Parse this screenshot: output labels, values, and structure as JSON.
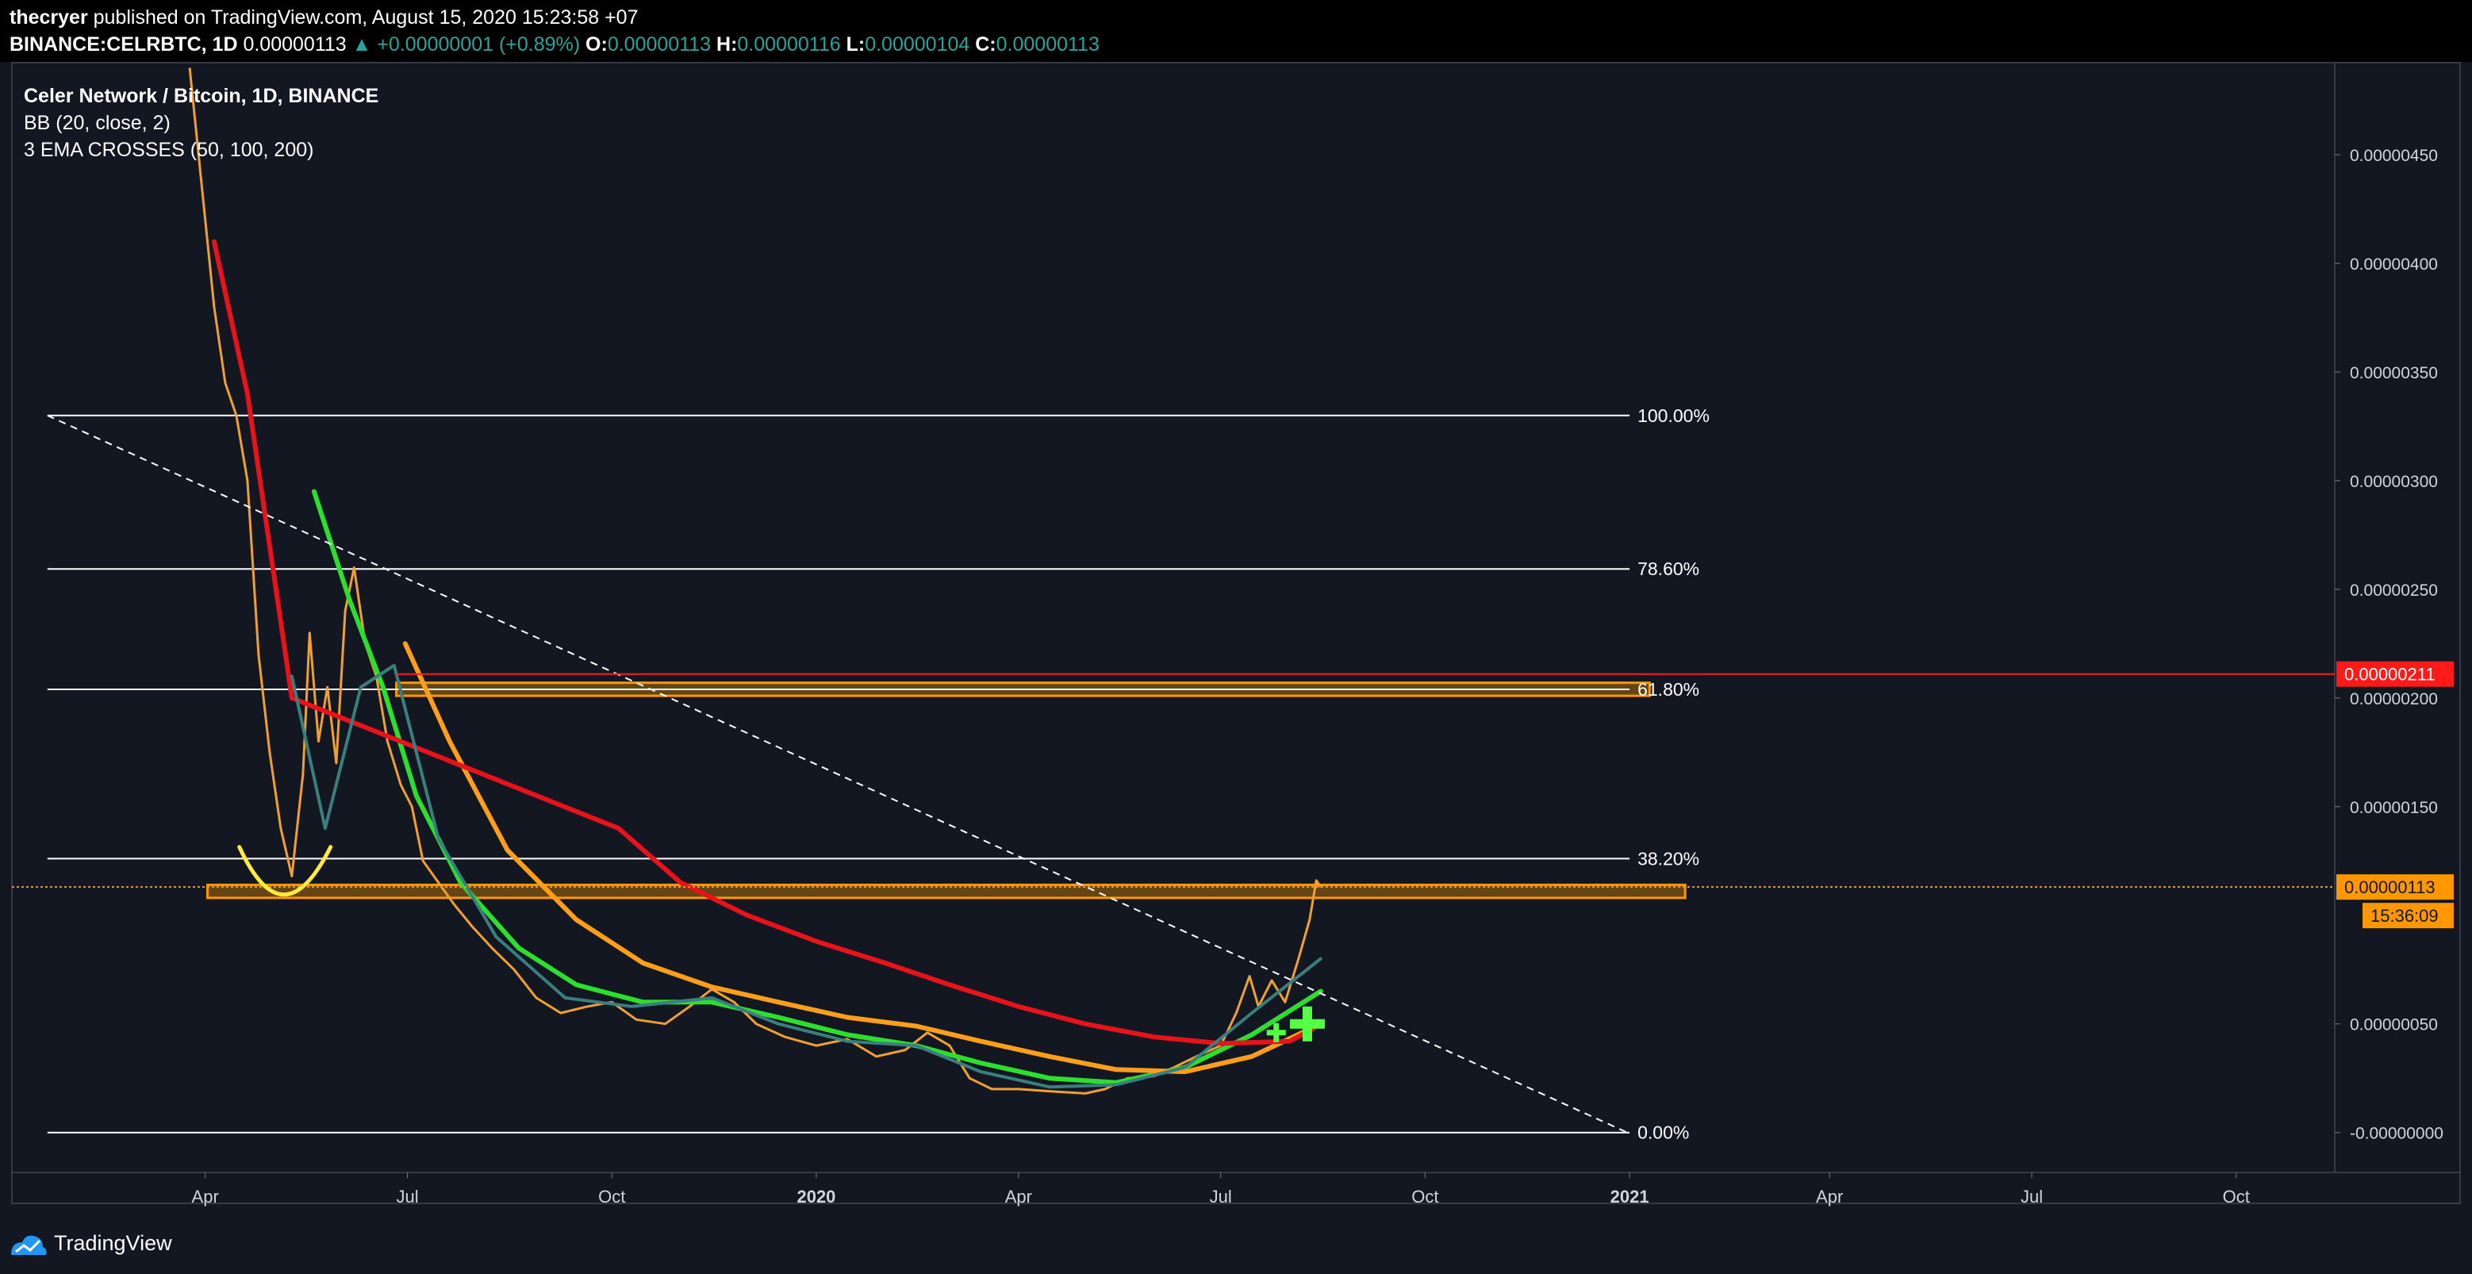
{
  "header": {
    "author": "thecryer",
    "published_text": "published on TradingView.com, August 15, 2020 15:23:58 +07",
    "symbol": "BINANCE:CELRBTC, 1D",
    "last_price": "0.00000113",
    "change": "▲ +0.00000001 (+0.89%)",
    "o_label": "O:",
    "o_value": "0.00000113",
    "h_label": "H:",
    "h_value": "0.00000116",
    "l_label": "L:",
    "l_value": "0.00000104",
    "c_label": "C:",
    "c_value": "0.00000113"
  },
  "legend": {
    "title": "Celer Network / Bitcoin, 1D, BINANCE",
    "indicator1": "BB (20, close, 2)",
    "indicator2": "3 EMA CROSSES (50, 100, 200)"
  },
  "footer": {
    "brand": "TradingView"
  },
  "colors": {
    "background": "#131722",
    "candle": "#f0a030",
    "ema50": "#2ede2e",
    "ema100": "#ff9e1a",
    "ema200": "#e8121a",
    "bb": "#3a7f7f",
    "zone": "#ff9800",
    "resistance": "#ff1a1a",
    "cross_marker": "#55ff44"
  },
  "chart_data": {
    "type": "line",
    "title": "Celer Network / Bitcoin, 1D, BINANCE",
    "y_axis_ticks": [
      {
        "value": 4.5e-06,
        "label": "0.00000450"
      },
      {
        "value": 4e-06,
        "label": "0.00000400"
      },
      {
        "value": 3.5e-06,
        "label": "0.00000350"
      },
      {
        "value": 3e-06,
        "label": "0.00000300"
      },
      {
        "value": 2.5e-06,
        "label": "0.00000250"
      },
      {
        "value": 2e-06,
        "label": "0.00000200"
      },
      {
        "value": 1.5e-06,
        "label": "0.00000150"
      },
      {
        "value": 5e-07,
        "label": "0.00000050"
      },
      {
        "value": -0.0,
        "label": "-0.00000000"
      }
    ],
    "ylim": [
      -1.8e-07,
      4.92e-06
    ],
    "x_axis_ticks": [
      {
        "date": "2019-04-01",
        "label": "Apr",
        "bold": false
      },
      {
        "date": "2019-07-01",
        "label": "Jul",
        "bold": false
      },
      {
        "date": "2019-10-01",
        "label": "Oct",
        "bold": false
      },
      {
        "date": "2020-01-01",
        "label": "2020",
        "bold": true
      },
      {
        "date": "2020-04-01",
        "label": "Apr",
        "bold": false
      },
      {
        "date": "2020-07-01",
        "label": "Jul",
        "bold": false
      },
      {
        "date": "2020-10-01",
        "label": "Oct",
        "bold": false
      },
      {
        "date": "2021-01-01",
        "label": "2021",
        "bold": true
      },
      {
        "date": "2021-04-01",
        "label": "Apr",
        "bold": false
      },
      {
        "date": "2021-07-01",
        "label": "Jul",
        "bold": false
      },
      {
        "date": "2021-10-01",
        "label": "Oct",
        "bold": false
      }
    ],
    "xlim": [
      "2019-01-04",
      "2021-11-14"
    ],
    "price_series": {
      "name": "CELRBTC",
      "points": [
        [
          "2019-03-25",
          4.9e-06
        ],
        [
          "2019-03-28",
          4.6e-06
        ],
        [
          "2019-04-01",
          4.2e-06
        ],
        [
          "2019-04-05",
          3.8e-06
        ],
        [
          "2019-04-10",
          3.45e-06
        ],
        [
          "2019-04-15",
          3.3e-06
        ],
        [
          "2019-04-20",
          3e-06
        ],
        [
          "2019-04-25",
          2.2e-06
        ],
        [
          "2019-04-30",
          1.75e-06
        ],
        [
          "2019-05-05",
          1.4e-06
        ],
        [
          "2019-05-10",
          1.18e-06
        ],
        [
          "2019-05-15",
          1.65e-06
        ],
        [
          "2019-05-18",
          2.3e-06
        ],
        [
          "2019-05-22",
          1.8e-06
        ],
        [
          "2019-05-26",
          2.05e-06
        ],
        [
          "2019-05-30",
          1.7e-06
        ],
        [
          "2019-06-03",
          2.4e-06
        ],
        [
          "2019-06-07",
          2.6e-06
        ],
        [
          "2019-06-12",
          2.25e-06
        ],
        [
          "2019-06-17",
          2.1e-06
        ],
        [
          "2019-06-22",
          1.8e-06
        ],
        [
          "2019-06-28",
          1.6e-06
        ],
        [
          "2019-07-03",
          1.5e-06
        ],
        [
          "2019-07-08",
          1.25e-06
        ],
        [
          "2019-07-15",
          1.15e-06
        ],
        [
          "2019-07-22",
          1.05e-06
        ],
        [
          "2019-07-30",
          9.5e-07
        ],
        [
          "2019-08-08",
          8.5e-07
        ],
        [
          "2019-08-18",
          7.5e-07
        ],
        [
          "2019-08-28",
          6.2e-07
        ],
        [
          "2019-09-08",
          5.5e-07
        ],
        [
          "2019-09-20",
          5.8e-07
        ],
        [
          "2019-10-01",
          6e-07
        ],
        [
          "2019-10-12",
          5.2e-07
        ],
        [
          "2019-10-25",
          5e-07
        ],
        [
          "2019-11-05",
          5.8e-07
        ],
        [
          "2019-11-15",
          6.6e-07
        ],
        [
          "2019-11-25",
          6e-07
        ],
        [
          "2019-12-05",
          5e-07
        ],
        [
          "2019-12-18",
          4.4e-07
        ],
        [
          "2020-01-01",
          4e-07
        ],
        [
          "2020-01-15",
          4.3e-07
        ],
        [
          "2020-01-28",
          3.5e-07
        ],
        [
          "2020-02-10",
          3.8e-07
        ],
        [
          "2020-02-20",
          4.6e-07
        ],
        [
          "2020-03-01",
          4e-07
        ],
        [
          "2020-03-10",
          2.5e-07
        ],
        [
          "2020-03-20",
          2e-07
        ],
        [
          "2020-04-01",
          2e-07
        ],
        [
          "2020-04-15",
          1.9e-07
        ],
        [
          "2020-05-01",
          1.8e-07
        ],
        [
          "2020-05-10",
          2e-07
        ],
        [
          "2020-05-20",
          2.5e-07
        ],
        [
          "2020-06-01",
          2.6e-07
        ],
        [
          "2020-06-10",
          3e-07
        ],
        [
          "2020-06-20",
          3.5e-07
        ],
        [
          "2020-07-01",
          4e-07
        ],
        [
          "2020-07-08",
          5.5e-07
        ],
        [
          "2020-07-14",
          7.2e-07
        ],
        [
          "2020-07-18",
          5.8e-07
        ],
        [
          "2020-07-24",
          7e-07
        ],
        [
          "2020-07-30",
          6e-07
        ],
        [
          "2020-08-05",
          8e-07
        ],
        [
          "2020-08-10",
          9.8e-07
        ],
        [
          "2020-08-13",
          1.16e-06
        ],
        [
          "2020-08-15",
          1.13e-06
        ]
      ]
    },
    "series": [
      {
        "name": "EMA 50",
        "points": [
          [
            "2019-05-20",
            2.95e-06
          ],
          [
            "2019-06-05",
            2.45e-06
          ],
          [
            "2019-06-20",
            2.05e-06
          ],
          [
            "2019-07-05",
            1.55e-06
          ],
          [
            "2019-07-25",
            1.15e-06
          ],
          [
            "2019-08-20",
            8.5e-07
          ],
          [
            "2019-09-15",
            6.8e-07
          ],
          [
            "2019-10-15",
            6e-07
          ],
          [
            "2019-11-15",
            6e-07
          ],
          [
            "2019-12-15",
            5.3e-07
          ],
          [
            "2020-01-15",
            4.5e-07
          ],
          [
            "2020-02-15",
            4e-07
          ],
          [
            "2020-03-15",
            3.2e-07
          ],
          [
            "2020-04-15",
            2.5e-07
          ],
          [
            "2020-05-15",
            2.3e-07
          ],
          [
            "2020-06-15",
            3e-07
          ],
          [
            "2020-07-15",
            4.5e-07
          ],
          [
            "2020-08-15",
            6.5e-07
          ]
        ]
      },
      {
        "name": "EMA 100",
        "points": [
          [
            "2019-06-30",
            2.25e-06
          ],
          [
            "2019-07-20",
            1.8e-06
          ],
          [
            "2019-08-15",
            1.3e-06
          ],
          [
            "2019-09-15",
            9.8e-07
          ],
          [
            "2019-10-15",
            7.8e-07
          ],
          [
            "2019-11-15",
            6.7e-07
          ],
          [
            "2019-12-15",
            6e-07
          ],
          [
            "2020-01-15",
            5.3e-07
          ],
          [
            "2020-02-15",
            4.9e-07
          ],
          [
            "2020-03-15",
            4.2e-07
          ],
          [
            "2020-04-15",
            3.5e-07
          ],
          [
            "2020-05-15",
            2.9e-07
          ],
          [
            "2020-06-15",
            2.8e-07
          ],
          [
            "2020-07-15",
            3.5e-07
          ],
          [
            "2020-08-15",
            5e-07
          ]
        ]
      },
      {
        "name": "EMA 200",
        "points": [
          [
            "2019-04-05",
            4.1e-06
          ],
          [
            "2019-04-20",
            3.4e-06
          ],
          [
            "2019-05-10",
            2e-06
          ],
          [
            "2019-10-04",
            1.4e-06
          ],
          [
            "2019-11-01",
            1.15e-06
          ],
          [
            "2019-12-01",
            1e-06
          ],
          [
            "2020-01-01",
            8.8e-07
          ],
          [
            "2020-02-01",
            7.8e-07
          ],
          [
            "2020-03-01",
            6.8e-07
          ],
          [
            "2020-04-01",
            5.8e-07
          ],
          [
            "2020-05-01",
            5e-07
          ],
          [
            "2020-06-01",
            4.4e-07
          ],
          [
            "2020-07-01",
            4.1e-07
          ],
          [
            "2020-08-01",
            4.2e-07
          ],
          [
            "2020-08-12",
            4.8e-07
          ]
        ]
      },
      {
        "name": "BB basis",
        "points": [
          [
            "2019-05-10",
            2.1e-06
          ],
          [
            "2019-05-25",
            1.4e-06
          ],
          [
            "2019-06-10",
            2.05e-06
          ],
          [
            "2019-06-25",
            2.15e-06
          ],
          [
            "2019-07-15",
            1.35e-06
          ],
          [
            "2019-08-10",
            9e-07
          ],
          [
            "2019-09-10",
            6.2e-07
          ],
          [
            "2019-10-10",
            5.8e-07
          ],
          [
            "2019-11-15",
            6.2e-07
          ],
          [
            "2019-12-15",
            5e-07
          ],
          [
            "2020-01-15",
            4.2e-07
          ],
          [
            "2020-02-15",
            4e-07
          ],
          [
            "2020-03-15",
            2.8e-07
          ],
          [
            "2020-04-15",
            2.1e-07
          ],
          [
            "2020-05-15",
            2.2e-07
          ],
          [
            "2020-06-15",
            3e-07
          ],
          [
            "2020-07-15",
            5.5e-07
          ],
          [
            "2020-08-15",
            8e-07
          ]
        ]
      }
    ],
    "fibonacci": {
      "start_date": "2019-01-20",
      "end_date": "2021-01-01",
      "high": 3.3e-06,
      "low": 0.0,
      "levels": [
        {
          "ratio": 1.0,
          "label": "100.00%"
        },
        {
          "ratio": 0.786,
          "label": "78.60%"
        },
        {
          "ratio": 0.618,
          "label": "61.80%"
        },
        {
          "ratio": 0.382,
          "label": "38.20%"
        },
        {
          "ratio": 0.0,
          "label": "0.00%"
        }
      ]
    },
    "trendline": {
      "from": [
        "2019-01-20",
        3.3e-06
      ],
      "to": [
        "2020-12-31",
        0.0
      ]
    },
    "zones": [
      {
        "from": "2019-06-26",
        "to": "2021-01-10",
        "top": 2.07e-06,
        "bottom": 2.01e-06
      },
      {
        "from": "2019-04-02",
        "to": "2021-01-26",
        "top": 1.14e-06,
        "bottom": 1.08e-06
      }
    ],
    "horizontal_levels": [
      {
        "value": 2.11e-06,
        "label": "0.00000211",
        "style": "resistance"
      },
      {
        "value": 1.13e-06,
        "label": "0.00000113",
        "style": "last_price",
        "countdown": "15:36:09"
      }
    ],
    "annotations": [
      {
        "type": "support_arc",
        "center": [
          "2019-05-06",
          1.15e-06
        ]
      },
      {
        "type": "ema_cross_small",
        "at": [
          "2020-07-26",
          4.6e-07
        ]
      },
      {
        "type": "ema_cross_large",
        "at": [
          "2020-08-09",
          5e-07
        ]
      }
    ]
  }
}
